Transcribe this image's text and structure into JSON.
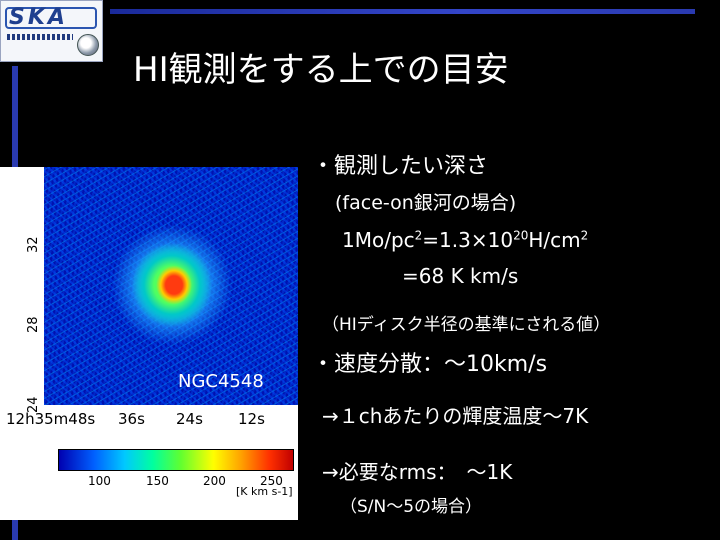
{
  "logo": {
    "text": "SKA"
  },
  "title": "HI観測をする上での目安",
  "figure": {
    "galaxy_label": "NGC4548",
    "dec_ticks": [
      "32",
      "28",
      "24"
    ],
    "ra_ticks": [
      "12h35m48s",
      "36s",
      "24s",
      "12s"
    ],
    "colorbar_ticks": [
      "100",
      "150",
      "200",
      "250"
    ],
    "colorbar_unit": "[K km s-1]"
  },
  "text": {
    "line1": "・観測したい深さ",
    "line2": "(face-on銀河の場合)",
    "line3_a": "1Mo/pc",
    "line3_sup1": "2",
    "line3_b": "=1.3×10",
    "line3_sup2": "20",
    "line3_c": "H/cm",
    "line3_sup3": "2",
    "line4": "=68 K km/s",
    "line5": "（HIディスク半径の基準にされる値）",
    "line6": "・速度分散：～10km/s",
    "line7": "→１chあたりの輝度温度～7K",
    "line8": "→必要なrms：　～1K",
    "line9": "（S/N～5の場合）"
  },
  "colors": {
    "accent": "#2a3ab0",
    "background": "#000000"
  }
}
